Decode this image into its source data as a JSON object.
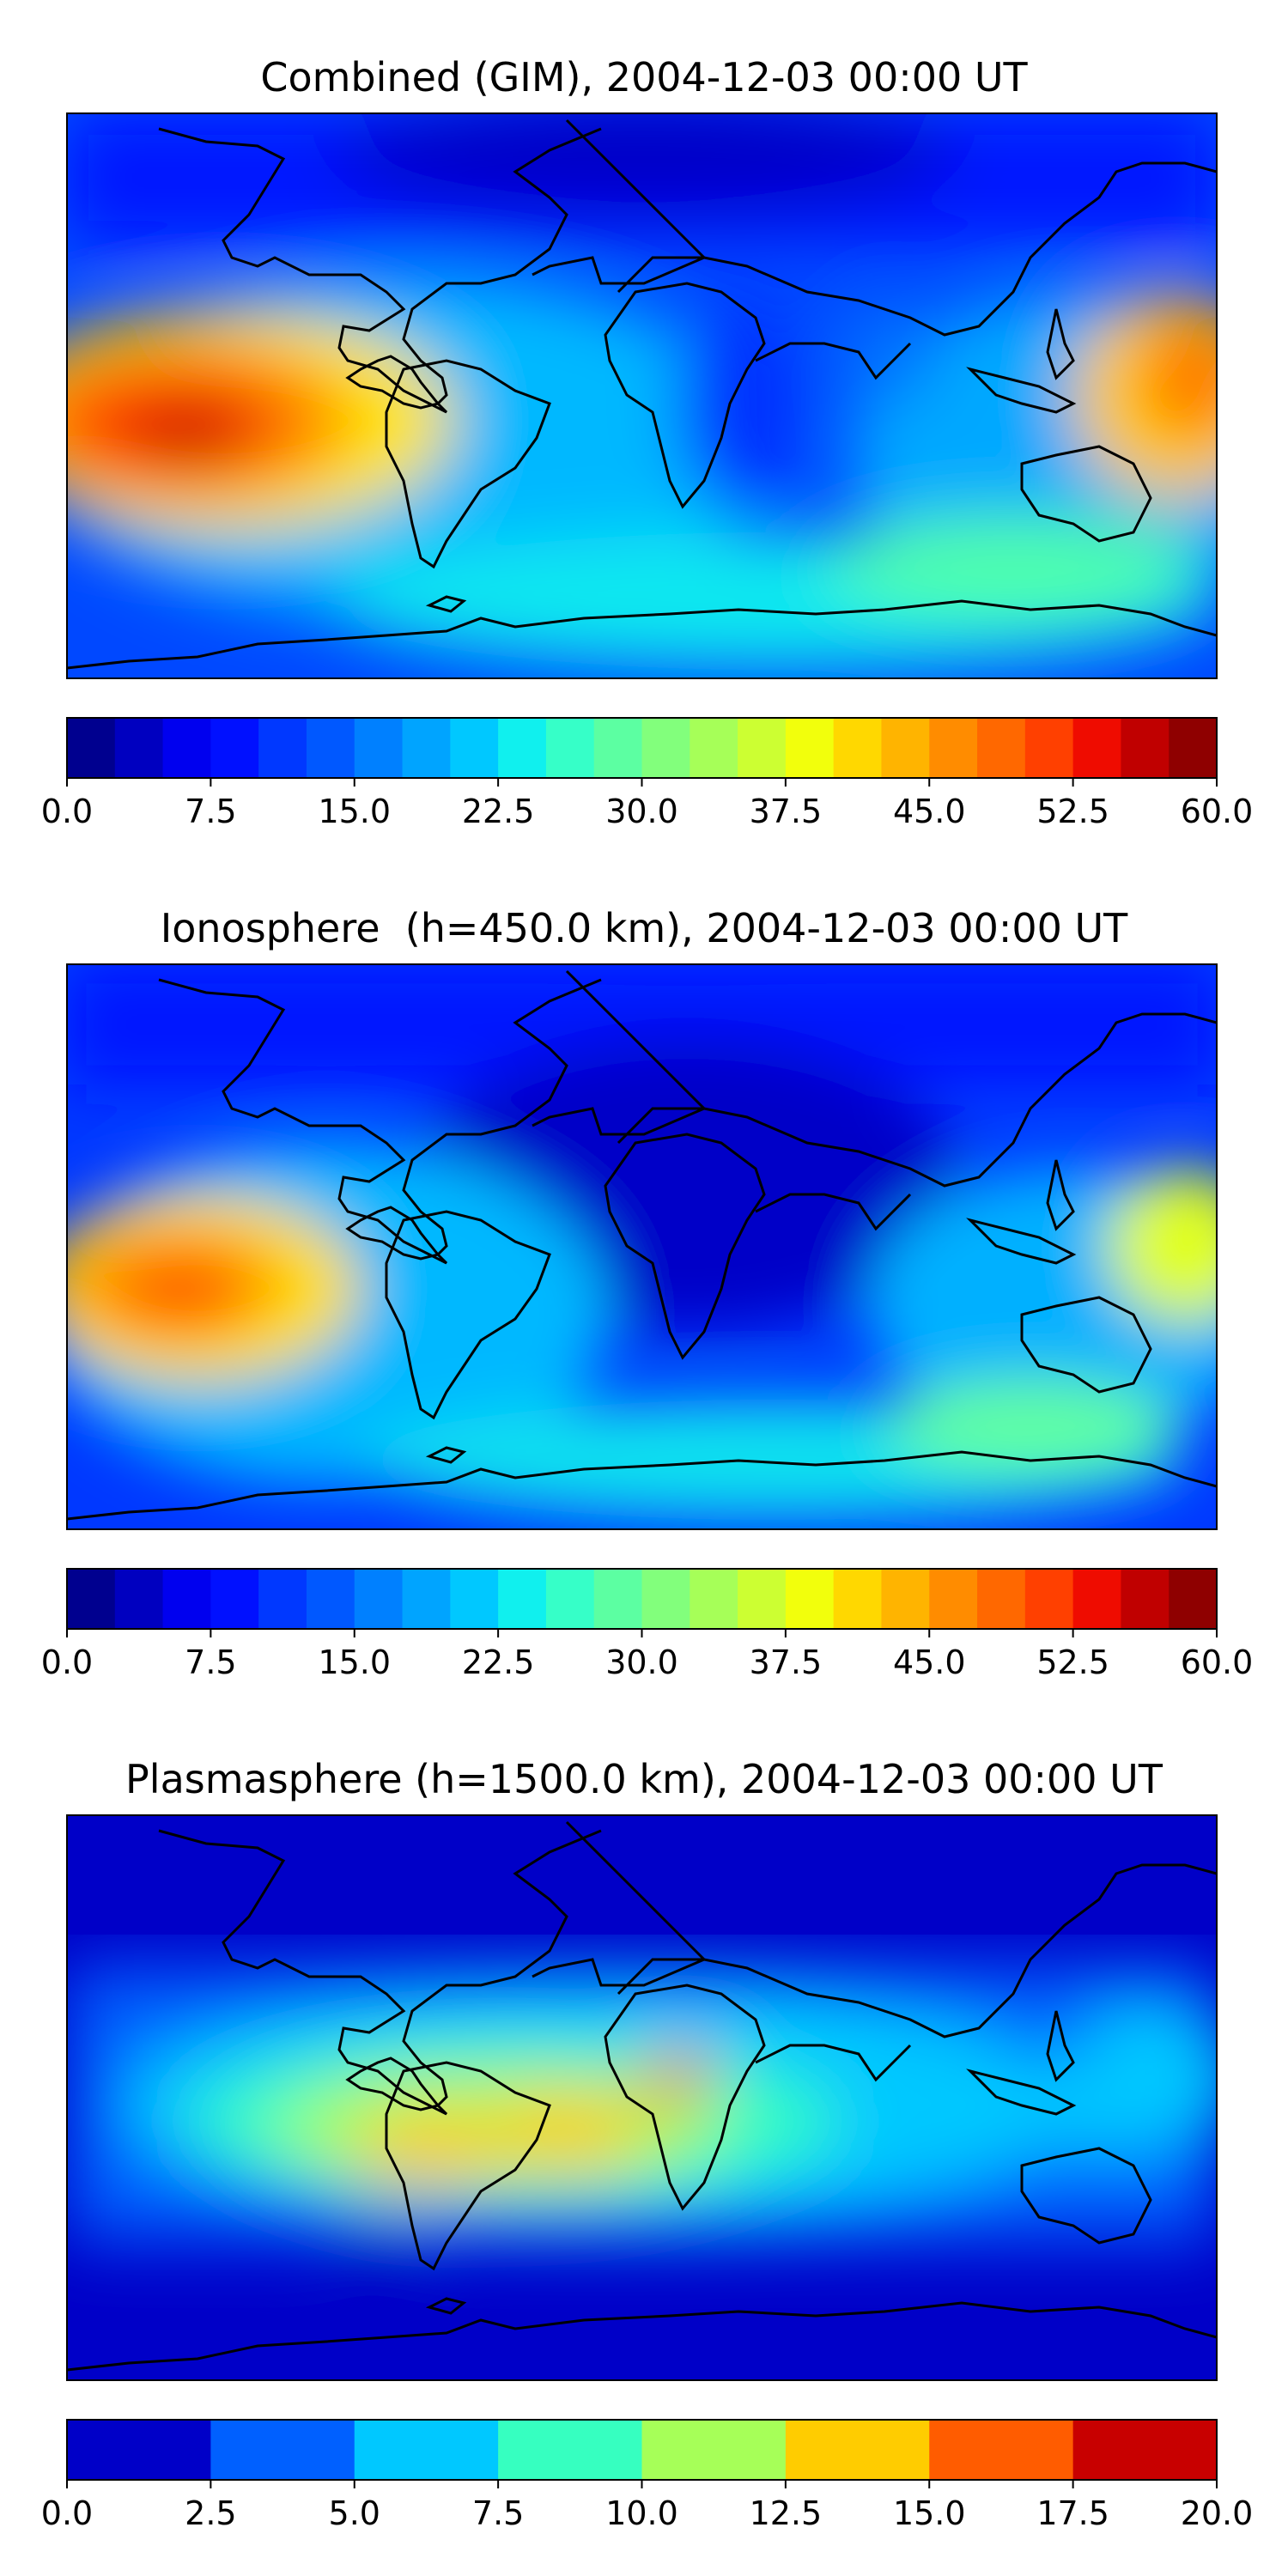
{
  "panels": [
    {
      "title": "Combined (GIM), 2004-12-03 00:00 UT",
      "colorbar": {
        "vmin": 0,
        "vmax": 60,
        "levels": 24,
        "ticks": [
          "0.0",
          "7.5",
          "15.0",
          "22.5",
          "30.0",
          "37.5",
          "45.0",
          "52.5",
          "60.0"
        ],
        "colors": [
          "#00008f",
          "#0000c0",
          "#0000ef",
          "#0010ff",
          "#0038ff",
          "#0058ff",
          "#0080ff",
          "#00a4ff",
          "#00c8ff",
          "#10f0ee",
          "#36ffc8",
          "#5cffa2",
          "#82ff7c",
          "#a6ff58",
          "#ccff32",
          "#f2ff0c",
          "#ffd800",
          "#ffb400",
          "#ff8c00",
          "#ff6800",
          "#ff4000",
          "#ef0c00",
          "#c00000",
          "#8f0000"
        ]
      }
    },
    {
      "title": "Ionosphere  (h=450.0 km), 2004-12-03 00:00 UT",
      "colorbar": {
        "vmin": 0,
        "vmax": 60,
        "levels": 24,
        "ticks": [
          "0.0",
          "7.5",
          "15.0",
          "22.5",
          "30.0",
          "37.5",
          "45.0",
          "52.5",
          "60.0"
        ],
        "colors": [
          "#00008f",
          "#0000c0",
          "#0000ef",
          "#0010ff",
          "#0038ff",
          "#0058ff",
          "#0080ff",
          "#00a4ff",
          "#00c8ff",
          "#10f0ee",
          "#36ffc8",
          "#5cffa2",
          "#82ff7c",
          "#a6ff58",
          "#ccff32",
          "#f2ff0c",
          "#ffd800",
          "#ffb400",
          "#ff8c00",
          "#ff6800",
          "#ff4000",
          "#ef0c00",
          "#c00000",
          "#8f0000"
        ]
      }
    },
    {
      "title": "Plasmasphere (h=1500.0 km), 2004-12-03 00:00 UT",
      "colorbar": {
        "vmin": 0,
        "vmax": 20,
        "levels": 8,
        "ticks": [
          "0.0",
          "2.5",
          "5.0",
          "7.5",
          "10.0",
          "12.5",
          "15.0",
          "17.5",
          "20.0"
        ],
        "colors": [
          "#0000c8",
          "#0060ff",
          "#00c8ff",
          "#36ffc0",
          "#a6ff58",
          "#ffcc00",
          "#ff5c00",
          "#c80000"
        ]
      }
    }
  ]
}
